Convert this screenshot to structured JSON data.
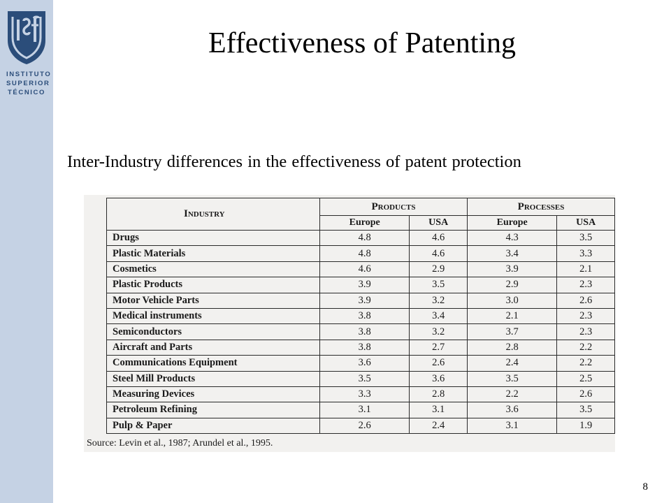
{
  "sidebar": {
    "logo_lines": [
      "INSTITUTO",
      "SUPERIOR",
      "TÉCNICO"
    ],
    "logo_color": "#2b4d7a",
    "background_color": "#c5d2e4"
  },
  "slide": {
    "title": "Effectiveness of Patenting",
    "subtitle": "Inter-Industry differences in the effectiveness of patent protection",
    "page_number": "8"
  },
  "table": {
    "header_industry": "Industry",
    "header_products": "Products",
    "header_processes": "Processes",
    "sub_headers": [
      "Europe",
      "USA",
      "Europe",
      "USA"
    ],
    "rows": [
      {
        "industry": "Drugs",
        "values": [
          "4.8",
          "4.6",
          "4.3",
          "3.5"
        ]
      },
      {
        "industry": "Plastic Materials",
        "values": [
          "4.8",
          "4.6",
          "3.4",
          "3.3"
        ]
      },
      {
        "industry": "Cosmetics",
        "values": [
          "4.6",
          "2.9",
          "3.9",
          "2.1"
        ]
      },
      {
        "industry": "Plastic Products",
        "values": [
          "3.9",
          "3.5",
          "2.9",
          "2.3"
        ]
      },
      {
        "industry": "Motor Vehicle Parts",
        "values": [
          "3.9",
          "3.2",
          "3.0",
          "2.6"
        ]
      },
      {
        "industry": "Medical instruments",
        "values": [
          "3.8",
          "3.4",
          "2.1",
          "2.3"
        ]
      },
      {
        "industry": "Semiconductors",
        "values": [
          "3.8",
          "3.2",
          "3.7",
          "2.3"
        ]
      },
      {
        "industry": "Aircraft and Parts",
        "values": [
          "3.8",
          "2.7",
          "2.8",
          "2.2"
        ]
      },
      {
        "industry": "Communications Equipment",
        "values": [
          "3.6",
          "2.6",
          "2.4",
          "2.2"
        ]
      },
      {
        "industry": "Steel Mill Products",
        "values": [
          "3.5",
          "3.6",
          "3.5",
          "2.5"
        ]
      },
      {
        "industry": "Measuring Devices",
        "values": [
          "3.3",
          "2.8",
          "2.2",
          "2.6"
        ]
      },
      {
        "industry": "Petroleum Refining",
        "values": [
          "3.1",
          "3.1",
          "3.6",
          "3.5"
        ]
      },
      {
        "industry": "Pulp & Paper",
        "values": [
          "2.6",
          "2.4",
          "3.1",
          "1.9"
        ]
      }
    ],
    "source": "Source:  Levin et al., 1987; Arundel et al., 1995."
  }
}
